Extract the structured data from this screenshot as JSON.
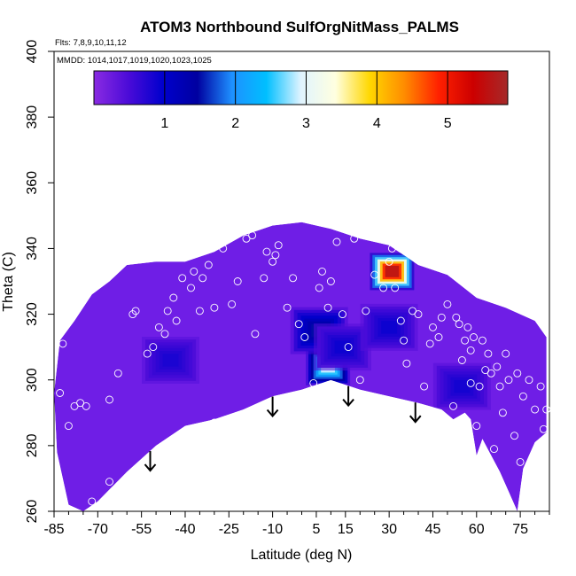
{
  "chart_data": {
    "type": "heatmap",
    "title": "ATOM3 Northbound SulfOrgNitMass_PALMS",
    "flights_note": "Flts: 7,8,9,10,11,12",
    "dates_note": "MMDD: 1014,1017,1019,1020,1023,1025",
    "xlabel": "Latitude (deg N)",
    "ylabel": "Theta (C)",
    "xlim": [
      -85,
      85
    ],
    "ylim": [
      260,
      400
    ],
    "x_ticks": [
      -85,
      -70,
      -55,
      -40,
      -25,
      -10,
      5,
      15,
      30,
      45,
      60,
      75
    ],
    "y_ticks": [
      260,
      280,
      300,
      320,
      340,
      360,
      380,
      400
    ],
    "colorbar": {
      "min": 0,
      "max": 5.85,
      "ticks": [
        1,
        2,
        3,
        4,
        5
      ],
      "colors": [
        "#8a2be2",
        "#4b0bd8",
        "#0000cd",
        "#0000a0",
        "#1e90ff",
        "#00bfff",
        "#e0f4ff",
        "#ffffe0",
        "#ffd700",
        "#ff8c00",
        "#ff2000",
        "#cc0000",
        "#a52a2a"
      ]
    },
    "surface_top": [
      [
        -83,
        312
      ],
      [
        -78,
        318
      ],
      [
        -72,
        326
      ],
      [
        -66,
        330
      ],
      [
        -60,
        335
      ],
      [
        -50,
        336
      ],
      [
        -40,
        336
      ],
      [
        -30,
        339
      ],
      [
        -20,
        344
      ],
      [
        -10,
        347
      ],
      [
        0,
        348
      ],
      [
        10,
        346
      ],
      [
        20,
        343
      ],
      [
        30,
        341
      ],
      [
        40,
        335
      ],
      [
        50,
        332
      ],
      [
        60,
        325
      ],
      [
        70,
        322
      ],
      [
        80,
        318
      ],
      [
        84,
        313
      ]
    ],
    "surface_bottom": [
      [
        84,
        284
      ],
      [
        80,
        281
      ],
      [
        76,
        273
      ],
      [
        74,
        260
      ],
      [
        71,
        266
      ],
      [
        68,
        272
      ],
      [
        62,
        282
      ],
      [
        60,
        277
      ],
      [
        58,
        288
      ],
      [
        56,
        290
      ],
      [
        52,
        288
      ],
      [
        48,
        291
      ],
      [
        40,
        293
      ],
      [
        30,
        295
      ],
      [
        20,
        297
      ],
      [
        10,
        300
      ],
      [
        0,
        297
      ],
      [
        -10,
        295
      ],
      [
        -20,
        291
      ],
      [
        -30,
        288
      ],
      [
        -40,
        286
      ],
      [
        -50,
        280
      ],
      [
        -60,
        272
      ],
      [
        -70,
        263
      ],
      [
        -75,
        260
      ],
      [
        -80,
        262
      ],
      [
        -84,
        278
      ],
      [
        -85,
        296
      ]
    ],
    "hotspots": [
      {
        "x": 31,
        "y": 333,
        "value": 5.6
      },
      {
        "x": 9,
        "y": 304,
        "value": 2.9
      },
      {
        "x": 6,
        "y": 315,
        "value": 1.5
      },
      {
        "x": 14,
        "y": 310,
        "value": 0.9
      },
      {
        "x": -45,
        "y": 306,
        "value": 0.8
      },
      {
        "x": 55,
        "y": 298,
        "value": 0.85
      },
      {
        "x": 30,
        "y": 316,
        "value": 0.9
      }
    ],
    "arrows_x": [
      -52,
      -10,
      16,
      39
    ],
    "points": [
      [
        -82,
        311
      ],
      [
        -83,
        296
      ],
      [
        -78,
        292
      ],
      [
        -76,
        293
      ],
      [
        -74,
        292
      ],
      [
        -80,
        286
      ],
      [
        -72,
        263
      ],
      [
        -66,
        269
      ],
      [
        -66,
        294
      ],
      [
        -63,
        302
      ],
      [
        -58,
        320
      ],
      [
        -57,
        321
      ],
      [
        -53,
        308
      ],
      [
        -51,
        310
      ],
      [
        -49,
        316
      ],
      [
        -47,
        314
      ],
      [
        -46,
        321
      ],
      [
        -44,
        325
      ],
      [
        -43,
        318
      ],
      [
        -41,
        331
      ],
      [
        -38,
        328
      ],
      [
        -37,
        333
      ],
      [
        -35,
        321
      ],
      [
        -34,
        331
      ],
      [
        -32,
        335
      ],
      [
        -30,
        322
      ],
      [
        -30,
        287
      ],
      [
        -27,
        340
      ],
      [
        -24,
        323
      ],
      [
        -22,
        330
      ],
      [
        -19,
        343
      ],
      [
        -17,
        344
      ],
      [
        -16,
        314
      ],
      [
        -13,
        331
      ],
      [
        -12,
        339
      ],
      [
        -10,
        336
      ],
      [
        -9,
        338
      ],
      [
        -8,
        341
      ],
      [
        -5,
        322
      ],
      [
        -3,
        331
      ],
      [
        -1,
        317
      ],
      [
        1,
        313
      ],
      [
        4,
        299
      ],
      [
        6,
        328
      ],
      [
        7,
        333
      ],
      [
        9,
        322
      ],
      [
        10,
        330
      ],
      [
        12,
        342
      ],
      [
        14,
        320
      ],
      [
        16,
        310
      ],
      [
        18,
        343
      ],
      [
        20,
        300
      ],
      [
        22,
        321
      ],
      [
        25,
        332
      ],
      [
        28,
        328
      ],
      [
        30,
        336
      ],
      [
        31,
        340
      ],
      [
        32,
        328
      ],
      [
        34,
        318
      ],
      [
        35,
        312
      ],
      [
        36,
        305
      ],
      [
        38,
        321
      ],
      [
        40,
        320
      ],
      [
        42,
        298
      ],
      [
        44,
        311
      ],
      [
        45,
        316
      ],
      [
        47,
        313
      ],
      [
        48,
        319
      ],
      [
        50,
        323
      ],
      [
        51,
        285
      ],
      [
        52,
        292
      ],
      [
        53,
        319
      ],
      [
        54,
        317
      ],
      [
        55,
        306
      ],
      [
        56,
        312
      ],
      [
        57,
        316
      ],
      [
        58,
        299
      ],
      [
        58,
        309
      ],
      [
        59,
        313
      ],
      [
        60,
        286
      ],
      [
        61,
        298
      ],
      [
        62,
        312
      ],
      [
        63,
        303
      ],
      [
        64,
        308
      ],
      [
        65,
        302
      ],
      [
        66,
        279
      ],
      [
        67,
        304
      ],
      [
        68,
        298
      ],
      [
        69,
        290
      ],
      [
        70,
        308
      ],
      [
        71,
        300
      ],
      [
        73,
        283
      ],
      [
        74,
        302
      ],
      [
        75,
        275
      ],
      [
        76,
        295
      ],
      [
        78,
        300
      ],
      [
        80,
        291
      ],
      [
        82,
        298
      ],
      [
        83,
        285
      ],
      [
        84,
        291
      ]
    ]
  }
}
